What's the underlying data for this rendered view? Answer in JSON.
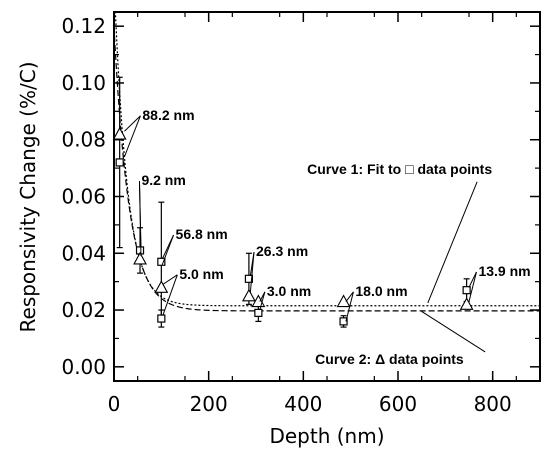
{
  "chart_data": {
    "type": "scatter",
    "xlabel": "Depth (nm)",
    "ylabel": "Responsivity Change (%/C)",
    "xlim": [
      0,
      900
    ],
    "ylim": [
      -0.005,
      0.125
    ],
    "xticks": [
      "0",
      "200",
      "400",
      "600",
      "800"
    ],
    "xtick_values": [
      0,
      200,
      400,
      600,
      800
    ],
    "yticks": [
      "0.00",
      "0.02",
      "0.04",
      "0.06",
      "0.08",
      "0.10",
      "0.12"
    ],
    "ytick_values": [
      0.0,
      0.02,
      0.04,
      0.06,
      0.08,
      0.1,
      0.12
    ],
    "grid": false,
    "series": [
      {
        "marker": "square",
        "points": [
          {
            "x": 12,
            "y": 0.072,
            "err": 0.03
          },
          {
            "x": 55,
            "y": 0.041,
            "err": 0.008
          },
          {
            "x": 100,
            "y": 0.037,
            "err": 0.021
          },
          {
            "x": 100,
            "y": 0.017,
            "err": 0.003
          },
          {
            "x": 285,
            "y": 0.031,
            "err": 0.009
          },
          {
            "x": 305,
            "y": 0.019,
            "err": 0.003
          },
          {
            "x": 485,
            "y": 0.016,
            "err": 0.002
          },
          {
            "x": 745,
            "y": 0.027,
            "err": 0.004
          }
        ]
      },
      {
        "marker": "triangle",
        "points": [
          {
            "x": 12,
            "y": 0.082
          },
          {
            "x": 55,
            "y": 0.038
          },
          {
            "x": 100,
            "y": 0.028
          },
          {
            "x": 285,
            "y": 0.025
          },
          {
            "x": 305,
            "y": 0.023
          },
          {
            "x": 485,
            "y": 0.023
          },
          {
            "x": 745,
            "y": 0.022
          }
        ]
      }
    ],
    "curves": [
      {
        "style": "dotted",
        "baseline": 0.0215,
        "amplitude": 0.115,
        "decay": 28
      },
      {
        "style": "dashed",
        "baseline": 0.0197,
        "amplitude": 0.1,
        "decay": 32
      }
    ],
    "annotations": [
      {
        "text": "88.2 nm",
        "x": 60,
        "y": 0.087,
        "targets": [
          [
            22,
            0.083
          ],
          [
            22,
            0.074
          ]
        ]
      },
      {
        "text": "9.2 nm",
        "x": 58,
        "y": 0.064,
        "targets": [
          [
            57,
            0.042
          ],
          [
            57,
            0.039
          ]
        ]
      },
      {
        "text": "56.8 nm",
        "x": 130,
        "y": 0.045,
        "targets": [
          [
            102,
            0.038
          ],
          [
            102,
            0.036
          ]
        ]
      },
      {
        "text": "5.0 nm",
        "x": 138,
        "y": 0.031,
        "targets": [
          [
            103,
            0.029
          ],
          [
            103,
            0.018
          ]
        ]
      },
      {
        "text": "26.3 nm",
        "x": 300,
        "y": 0.039,
        "targets": [
          [
            288,
            0.032
          ],
          [
            288,
            0.026
          ]
        ]
      },
      {
        "text": "3.0 nm",
        "x": 323,
        "y": 0.025,
        "targets": [
          [
            308,
            0.023
          ],
          [
            308,
            0.02
          ]
        ]
      },
      {
        "text": "18.0 nm",
        "x": 510,
        "y": 0.025,
        "targets": [
          [
            490,
            0.023
          ],
          [
            490,
            0.016
          ]
        ]
      },
      {
        "text": "13.9 nm",
        "x": 770,
        "y": 0.032,
        "targets": [
          [
            750,
            0.028
          ],
          [
            750,
            0.023
          ]
        ]
      },
      {
        "text": "Curve 1: Fit to □ data points",
        "x": 408,
        "y": 0.068,
        "targets": [
          [
            663,
            0.0225
          ]
        ]
      },
      {
        "text": "Curve 2: Δ data points",
        "x": 425,
        "y": 0.001,
        "targets": [
          [
            650,
            0.0195
          ]
        ]
      }
    ]
  }
}
